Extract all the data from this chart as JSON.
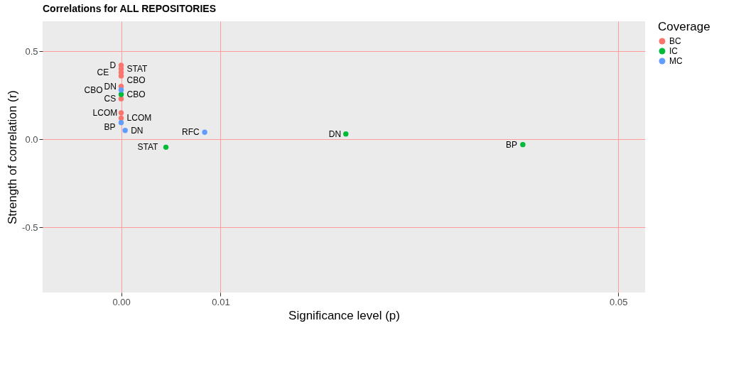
{
  "chart_data": {
    "type": "scatter",
    "title": "Correlations for ALL REPOSITORIES",
    "xlabel": "Significance level (p)",
    "ylabel": "Strength of correlation (r)",
    "legend_title": "Coverage",
    "legend": "right",
    "grid": true,
    "marker": "circle",
    "xlim": [
      -0.0079,
      0.0527
    ],
    "ylim": [
      -0.87,
      0.67
    ],
    "xticks": [
      {
        "value": 0,
        "label": "0.00"
      },
      {
        "value": 0.01,
        "label": "0.01"
      },
      {
        "value": 0.05,
        "label": "0.05"
      }
    ],
    "yticks": [
      {
        "value": -0.5,
        "label": "-0.5"
      },
      {
        "value": 0,
        "label": "0.0"
      },
      {
        "value": 0.5,
        "label": "0.5"
      }
    ],
    "series": [
      {
        "name": "BC",
        "color": "#f8766d",
        "x": [
          0,
          0,
          0,
          0,
          0,
          0,
          0,
          0
        ],
        "values": [
          0.42,
          0.4,
          0.38,
          0.36,
          0.3,
          0.23,
          0.15,
          0.12
        ]
      },
      {
        "name": "IC",
        "color": "#00ba38",
        "x": [
          0,
          0.0045,
          0.0226,
          0.0404
        ],
        "values": [
          0.255,
          -0.045,
          0.03,
          -0.03
        ]
      },
      {
        "name": "MC",
        "color": "#619cff",
        "x": [
          0,
          0,
          0.0004,
          0.0084
        ],
        "values": [
          0.28,
          0.095,
          0.05,
          0.04
        ]
      }
    ],
    "annotations": [
      {
        "text": "D",
        "x": 0,
        "y": 0.42
      },
      {
        "text": "STAT",
        "x": 0,
        "y": 0.4
      },
      {
        "text": "CE",
        "x": 0,
        "y": 0.38
      },
      {
        "text": "CBO",
        "x": 0,
        "y": 0.36
      },
      {
        "text": "DN",
        "x": 0,
        "y": 0.3
      },
      {
        "text": "CBO",
        "x": 0,
        "y": 0.28
      },
      {
        "text": "CBO",
        "x": 0,
        "y": 0.255
      },
      {
        "text": "CS",
        "x": 0,
        "y": 0.23
      },
      {
        "text": "LCOM",
        "x": 0,
        "y": 0.15
      },
      {
        "text": "LCOM",
        "x": 0,
        "y": 0.12
      },
      {
        "text": "BP",
        "x": 0,
        "y": 0.095
      },
      {
        "text": "DN",
        "x": 0.0004,
        "y": 0.05
      },
      {
        "text": "RFC",
        "x": 0.0084,
        "y": 0.04
      },
      {
        "text": "STAT",
        "x": 0.0045,
        "y": -0.045
      },
      {
        "text": "DN",
        "x": 0.0226,
        "y": 0.03
      },
      {
        "text": "BP",
        "x": 0.0404,
        "y": -0.03
      }
    ]
  }
}
